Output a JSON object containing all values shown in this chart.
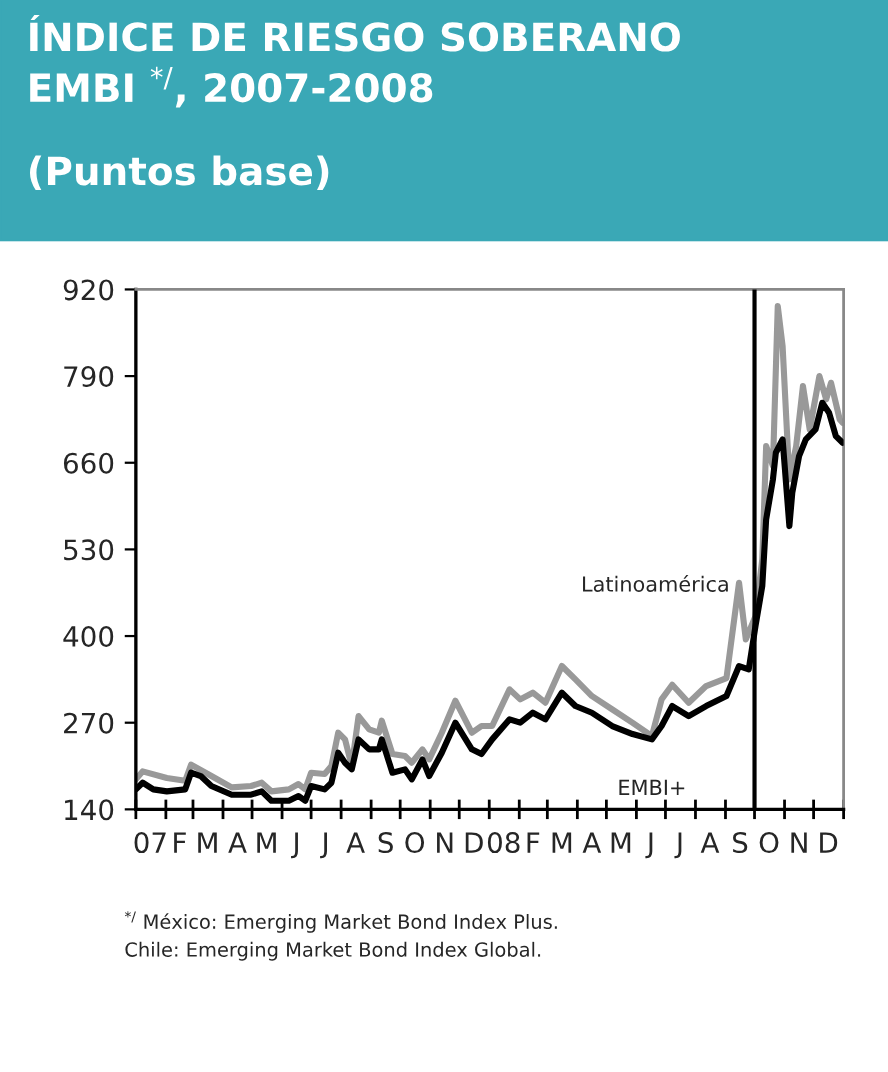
{
  "chart_data": {
    "type": "line",
    "title": "ÍNDICE DE RIESGO SOBERANO\nEMBI $^{*/}$, 2007-2008",
    "subtitle": "(Puntos base)",
    "xlim": [
      "2007-01-01",
      "2009-01-01"
    ],
    "xticks": [
      {
        "value": "2007-01-01",
        "label": null
      },
      {
        "value": "2007-02-01",
        "label": null
      },
      {
        "value": "2007-03-01",
        "label": null
      },
      {
        "value": "2007-04-01",
        "label": null
      },
      {
        "value": "2007-05-01",
        "label": null
      },
      {
        "value": "2007-06-01",
        "label": null
      },
      {
        "value": "2007-07-01",
        "label": null
      },
      {
        "value": "2007-08-01",
        "label": null
      },
      {
        "value": "2007-09-01",
        "label": null
      },
      {
        "value": "2007-10-01",
        "label": null
      },
      {
        "value": "2007-11-01",
        "label": null
      },
      {
        "value": "2007-12-01",
        "label": null
      },
      {
        "value": "2008-01-01",
        "label": null
      },
      {
        "value": "2008-02-01",
        "label": null
      },
      {
        "value": "2008-03-01",
        "label": null
      },
      {
        "value": "2008-04-01",
        "label": null
      },
      {
        "value": "2008-05-01",
        "label": null
      },
      {
        "value": "2008-06-01",
        "label": null
      },
      {
        "value": "2008-07-01",
        "label": null
      },
      {
        "value": "2008-08-01",
        "label": null
      },
      {
        "value": "2008-09-01",
        "label": null
      },
      {
        "value": "2008-10-01",
        "label": null
      },
      {
        "value": "2008-11-01",
        "label": null
      },
      {
        "value": "2008-12-01",
        "label": null
      },
      {
        "value": "2009-01-01",
        "label": null
      },
      {
        "value": "2007-01-16",
        "label": "07"
      },
      {
        "value": "2007-02-15",
        "label": "F"
      },
      {
        "value": "2007-03-16",
        "label": "M"
      },
      {
        "value": "2007-04-16",
        "label": "A"
      },
      {
        "value": "2007-05-16",
        "label": "M"
      },
      {
        "value": "2007-06-16",
        "label": "J"
      },
      {
        "value": "2007-07-16",
        "label": "J"
      },
      {
        "value": "2007-08-16",
        "label": "A"
      },
      {
        "value": "2007-09-16",
        "label": "S"
      },
      {
        "value": "2007-10-16",
        "label": "O"
      },
      {
        "value": "2007-11-16",
        "label": "N"
      },
      {
        "value": "2007-12-16",
        "label": "D"
      },
      {
        "value": "2008-01-16",
        "label": "08"
      },
      {
        "value": "2008-02-15",
        "label": "F"
      },
      {
        "value": "2008-03-16",
        "label": "M"
      },
      {
        "value": "2008-04-16",
        "label": "A"
      },
      {
        "value": "2008-05-16",
        "label": "M"
      },
      {
        "value": "2008-06-16",
        "label": "J"
      },
      {
        "value": "2008-07-16",
        "label": "J"
      },
      {
        "value": "2008-08-16",
        "label": "A"
      },
      {
        "value": "2008-09-16",
        "label": "S"
      },
      {
        "value": "2008-10-16",
        "label": "O"
      },
      {
        "value": "2008-11-16",
        "label": "N"
      },
      {
        "value": "2008-12-16",
        "label": "D"
      }
    ],
    "ylim": [
      140,
      920
    ],
    "yticks": [
      140,
      270,
      400,
      530,
      660,
      790,
      920
    ],
    "grid": false,
    "legend": false,
    "ref_lines": [
      {
        "axis": "x",
        "value": "2008-10-01",
        "color": "#000000"
      }
    ],
    "series": [
      {
        "name": "Latinoamérica",
        "color": "#999999",
        "x": [
          "2007-01-01",
          "2007-01-08",
          "2007-02-02",
          "2007-02-21",
          "2007-02-27",
          "2007-03-20",
          "2007-04-10",
          "2007-04-30",
          "2007-05-11",
          "2007-05-21",
          "2007-06-08",
          "2007-06-18",
          "2007-06-25",
          "2007-07-01",
          "2007-07-15",
          "2007-07-22",
          "2007-07-29",
          "2007-08-05",
          "2007-08-12",
          "2007-08-19",
          "2007-08-30",
          "2007-09-09",
          "2007-09-12",
          "2007-09-23",
          "2007-10-06",
          "2007-10-13",
          "2007-10-24",
          "2007-10-31",
          "2007-11-13",
          "2007-11-27",
          "2007-12-14",
          "2007-12-24",
          "2008-01-04",
          "2008-01-22",
          "2008-02-02",
          "2008-02-15",
          "2008-02-28",
          "2008-03-16",
          "2008-03-30",
          "2008-04-16",
          "2008-05-07",
          "2008-05-28",
          "2008-06-17",
          "2008-06-27",
          "2008-07-08",
          "2008-07-25",
          "2008-08-12",
          "2008-09-02",
          "2008-09-15",
          "2008-09-22",
          "2008-10-02",
          "2008-10-09",
          "2008-10-13",
          "2008-10-20",
          "2008-10-25",
          "2008-10-30",
          "2008-11-06",
          "2008-11-13",
          "2008-11-20",
          "2008-11-27",
          "2008-12-07",
          "2008-12-14",
          "2008-12-19",
          "2008-12-28",
          "2008-12-31"
        ],
        "values": [
          185,
          197,
          187,
          183,
          207,
          190,
          173,
          175,
          180,
          167,
          170,
          178,
          170,
          195,
          193,
          205,
          255,
          245,
          205,
          280,
          260,
          255,
          273,
          223,
          220,
          210,
          230,
          215,
          255,
          303,
          255,
          265,
          265,
          320,
          305,
          315,
          300,
          355,
          335,
          310,
          290,
          270,
          250,
          305,
          327,
          300,
          325,
          337,
          480,
          395,
          430,
          515,
          685,
          655,
          895,
          835,
          635,
          685,
          775,
          710,
          790,
          755,
          780,
          725,
          720
        ]
      },
      {
        "name": "EMBI+",
        "color": "#000000",
        "x": [
          "2007-01-01",
          "2007-01-08",
          "2007-01-19",
          "2007-02-02",
          "2007-02-21",
          "2007-02-27",
          "2007-03-09",
          "2007-03-20",
          "2007-04-10",
          "2007-04-30",
          "2007-05-11",
          "2007-05-21",
          "2007-06-08",
          "2007-06-18",
          "2007-06-25",
          "2007-07-01",
          "2007-07-15",
          "2007-07-22",
          "2007-07-29",
          "2007-08-05",
          "2007-08-12",
          "2007-08-19",
          "2007-08-30",
          "2007-09-09",
          "2007-09-12",
          "2007-09-23",
          "2007-10-06",
          "2007-10-13",
          "2007-10-24",
          "2007-10-31",
          "2007-11-13",
          "2007-11-27",
          "2007-12-14",
          "2007-12-24",
          "2008-01-04",
          "2008-01-22",
          "2008-02-02",
          "2008-02-15",
          "2008-02-28",
          "2008-03-16",
          "2008-03-30",
          "2008-04-16",
          "2008-05-07",
          "2008-05-28",
          "2008-06-17",
          "2008-06-27",
          "2008-07-08",
          "2008-07-25",
          "2008-08-12",
          "2008-09-02",
          "2008-09-15",
          "2008-09-25",
          "2008-10-02",
          "2008-10-09",
          "2008-10-13",
          "2008-10-20",
          "2008-10-23",
          "2008-10-30",
          "2008-11-06",
          "2008-11-09",
          "2008-11-16",
          "2008-11-23",
          "2008-12-03",
          "2008-12-10",
          "2008-12-17",
          "2008-12-24",
          "2008-12-31"
        ],
        "values": [
          170,
          180,
          170,
          167,
          170,
          195,
          190,
          175,
          162,
          162,
          167,
          153,
          153,
          160,
          153,
          175,
          170,
          180,
          225,
          210,
          200,
          245,
          230,
          230,
          245,
          195,
          200,
          185,
          215,
          190,
          225,
          270,
          230,
          223,
          245,
          275,
          270,
          285,
          275,
          315,
          295,
          285,
          265,
          253,
          245,
          265,
          295,
          280,
          295,
          310,
          355,
          350,
          415,
          475,
          575,
          635,
          675,
          695,
          565,
          615,
          670,
          695,
          710,
          750,
          735,
          700,
          690
        ]
      }
    ],
    "annotations": [
      "$^{*/}$ México: Emerging Market Bond Index Plus.\nChile: Emerging Market Bond Index Global."
    ]
  }
}
